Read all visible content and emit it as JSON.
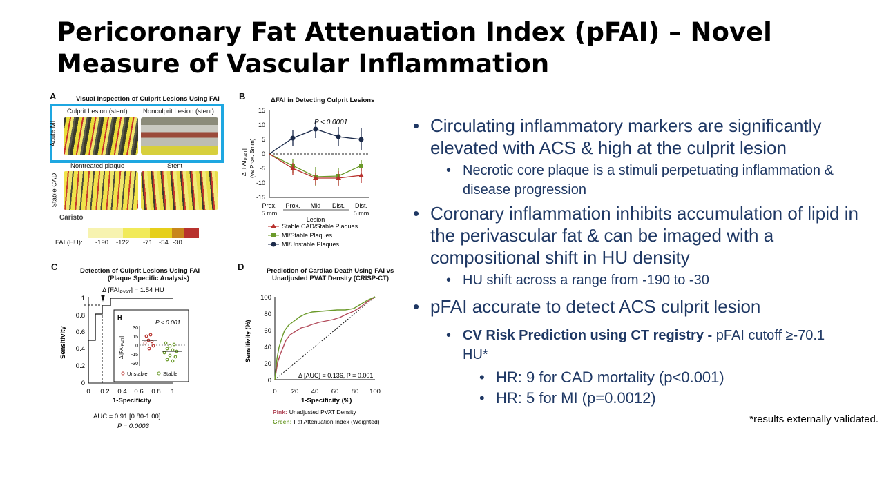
{
  "slide": {
    "title_line1": "Pericoronary Fat Attenuation Index (pFAI) – Novel",
    "title_line2": "Measure of Vascular Inflammation"
  },
  "figure": {
    "panelA": {
      "label": "A",
      "title": "Visual Inspection of Culprit Lesions Using FAI",
      "culprit": "Culprit Lesion (stent)",
      "nonculprit": "Nonculprit Lesion (stent)",
      "row1": "Acute MI",
      "nontreated": "Nontreated plaque",
      "stent": "Stent",
      "row2": "Stable CAD",
      "logo": "Caristo",
      "scale_label": "FAI (HU):",
      "scale_ticks": [
        "-190",
        "-122",
        "-71",
        "-54",
        "-30"
      ],
      "scale_colors": [
        "#f7f3b0",
        "#f1ea5a",
        "#e6cf1a",
        "#c8861b",
        "#b8322e"
      ]
    },
    "panelB": {
      "label": "B",
      "title": "ΔFAI in Detecting Culprit Lesions",
      "ylabel": "Δ [FAI",
      "ysub": "PVAT",
      "ylabel2": "]",
      "ylabel_line2": "(vs Prox. 5mm)",
      "yticks": [
        "15",
        "10",
        "5",
        "0",
        "-5",
        "-10",
        "-15"
      ],
      "xticks": [
        "Prox.\n5 mm",
        "Prox.",
        "Mid",
        "Dist.",
        "Dist.\n5 mm"
      ],
      "xlabel": "Lesion",
      "pvalue": "P < 0.0001",
      "legend": [
        "Stable CAD/Stable Plaques",
        "MI/Stable Plaques",
        "MI/Unstable Plaques"
      ]
    },
    "panelC": {
      "label": "C",
      "title_line1": "Detection of Culprit Lesions Using FAI",
      "title_line2": "(Plaque Specific Analysis)",
      "delta": "Δ [FAI",
      "delta_sub": "PVAT",
      "delta_val": "] = 1.54 HU",
      "ylabel": "Sensitivity",
      "xlabel": "1-Specificity",
      "yticks": [
        "1",
        "0.8",
        "0.6",
        "0.4",
        "0.2",
        "0"
      ],
      "xticks": [
        "0",
        "0.2",
        "0.4",
        "0.6",
        "0.8",
        "1"
      ],
      "auc": "AUC = 0.91 [0.80-1.00]",
      "pvalue": "P = 0.0003",
      "inset_label": "H",
      "inset_p": "P < 0.001",
      "inset_yticks": [
        "30",
        "15",
        "0",
        "-15",
        "-30"
      ],
      "inset_ylabel": "Δ [FAI",
      "inset_ysub": "PVAT",
      "inset_unstable": "Unstable",
      "inset_stable": "Stable"
    },
    "panelD": {
      "label": "D",
      "title_line1": "Prediction of Cardiac Death Using FAI vs",
      "title_line2": "Unadjusted PVAT Density (CRISP-CT)",
      "ylabel": "Sensitivity (%)",
      "xlabel": "1-Specificity (%)",
      "ticks": [
        "0",
        "20",
        "40",
        "60",
        "80",
        "100"
      ],
      "delta_auc": "Δ [AUC] = 0.136, P = 0.001",
      "pink_key": "Pink:",
      "pink_text": "Unadjusted PVAT Density",
      "green_key": "Green:",
      "green_text": "Fat Attenuation Index (Weighted)"
    }
  },
  "bullets": {
    "b1": "Circulating inflammatory markers are significantly elevated with ACS & high at the culprit lesion",
    "b1_sub": "Necrotic core plaque is a stimuli perpetuating inflammation & disease progression",
    "b2": "Coronary inflammation inhibits accumulation of lipid in the perivascular fat & can be imaged with a compositional shift in HU density",
    "b2_sub": "HU shift across a range from -190 to -30",
    "b3": "pFAI accurate to detect ACS culprit lesion",
    "b3_sub_bold": "CV Risk Prediction using CT registry - ",
    "b3_sub_rest": "pFAI cutoff ≥-70.1 HU*",
    "b3_sub_items": [
      "HR: 9 for CAD mortality (p<0.001)",
      "HR: 5 for MI (p=0.0012)"
    ]
  },
  "footnote": "*results externally validated.",
  "colors": {
    "bullet_text": "#1f3864",
    "highlight_box": "#1ea7e1",
    "stable_cad": "#b8322e",
    "mi_stable": "#6b9a2a",
    "mi_unstable": "#1b2a4a",
    "pink_curve": "#b24a5a",
    "green_curve": "#6b9a2a"
  }
}
